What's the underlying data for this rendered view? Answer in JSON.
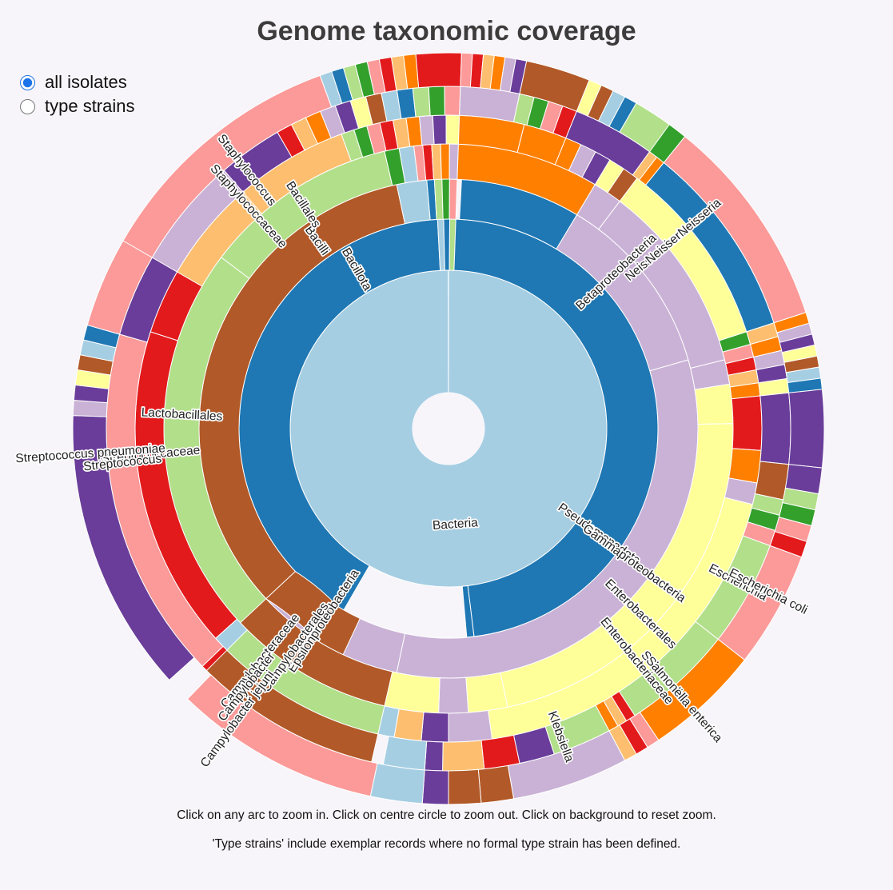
{
  "page": {
    "title": "Genome taxonomic coverage",
    "options": [
      {
        "label": "all isolates",
        "checked": true
      },
      {
        "label": "type strains",
        "checked": false
      }
    ],
    "note_zoom": "Click on any arc to zoom in. Click on centre circle to zoom out. Click on background to reset zoom.",
    "note_type": "'Type strains' include exemplar records where no formal type strain has been defined."
  },
  "chart_data": {
    "type": "sunburst",
    "ring_order": [
      "domain",
      "phylum",
      "class",
      "order",
      "family",
      "genus",
      "species"
    ],
    "root_label": "Bacteria",
    "palette": [
      "#a6cee3",
      "#1f78b4",
      "#b2df8a",
      "#33a02c",
      "#fb9a99",
      "#e31a1c",
      "#fdbf6f",
      "#ff7f00",
      "#cab2d6",
      "#6a3d9a",
      "#ffff99",
      "#b15928"
    ],
    "major_taxa": [
      {
        "level": "phylum",
        "label": "Bacillota",
        "share_deg": 147
      },
      {
        "level": "phylum",
        "label": "Pseudomonadota",
        "share_deg": 171
      },
      {
        "level": "class",
        "label": "Bacilli",
        "share_deg": 130
      },
      {
        "level": "class",
        "label": "Betaproteobacteria",
        "share_deg": 43
      },
      {
        "level": "class",
        "label": "Gammaproteobacteria",
        "share_deg": 118
      },
      {
        "level": "class",
        "label": "Epsilonproteobacteria",
        "share_deg": 35
      },
      {
        "level": "order",
        "label": "Bacillales",
        "share_deg": 40
      },
      {
        "level": "order",
        "label": "Lactobacillales",
        "share_deg": 82
      },
      {
        "level": "order",
        "label": "Neisseriales",
        "share_deg": 39
      },
      {
        "level": "order",
        "label": "Enterobacterales",
        "share_deg": 79
      },
      {
        "level": "order",
        "label": "Campylobacterales",
        "share_deg": 34
      },
      {
        "level": "family",
        "label": "Staphylococcaceae",
        "share_deg": 19
      },
      {
        "level": "family",
        "label": "Streptococcaceae",
        "share_deg": 60
      },
      {
        "level": "family",
        "label": "Neisseriaceae",
        "share_deg": 35
      },
      {
        "level": "family",
        "label": "Enterobacteriaceae",
        "share_deg": 68
      },
      {
        "level": "family",
        "label": "Campylobacteraceae",
        "share_deg": 32
      },
      {
        "level": "genus",
        "label": "Staphylococcus",
        "share_deg": 19
      },
      {
        "level": "genus",
        "label": "Streptococcus",
        "share_deg": 60
      },
      {
        "level": "genus",
        "label": "Neisseria",
        "share_deg": 33
      },
      {
        "level": "genus",
        "label": "Escherichia",
        "share_deg": 18
      },
      {
        "level": "genus",
        "label": "Salmonella",
        "share_deg": 19
      },
      {
        "level": "genus",
        "label": "Klebsiella",
        "share_deg": 10
      },
      {
        "level": "genus",
        "label": "Campylobacter",
        "share_deg": 32
      },
      {
        "level": "species",
        "label": "Streptococcus pneumoniae",
        "share_deg": 44
      },
      {
        "level": "species",
        "label": "Escherichia coli",
        "share_deg": 18
      },
      {
        "level": "species",
        "label": "Salmonella enterica",
        "share_deg": 18
      },
      {
        "level": "species",
        "label": "Campylobacter jejuni",
        "share_deg": 30
      }
    ]
  }
}
